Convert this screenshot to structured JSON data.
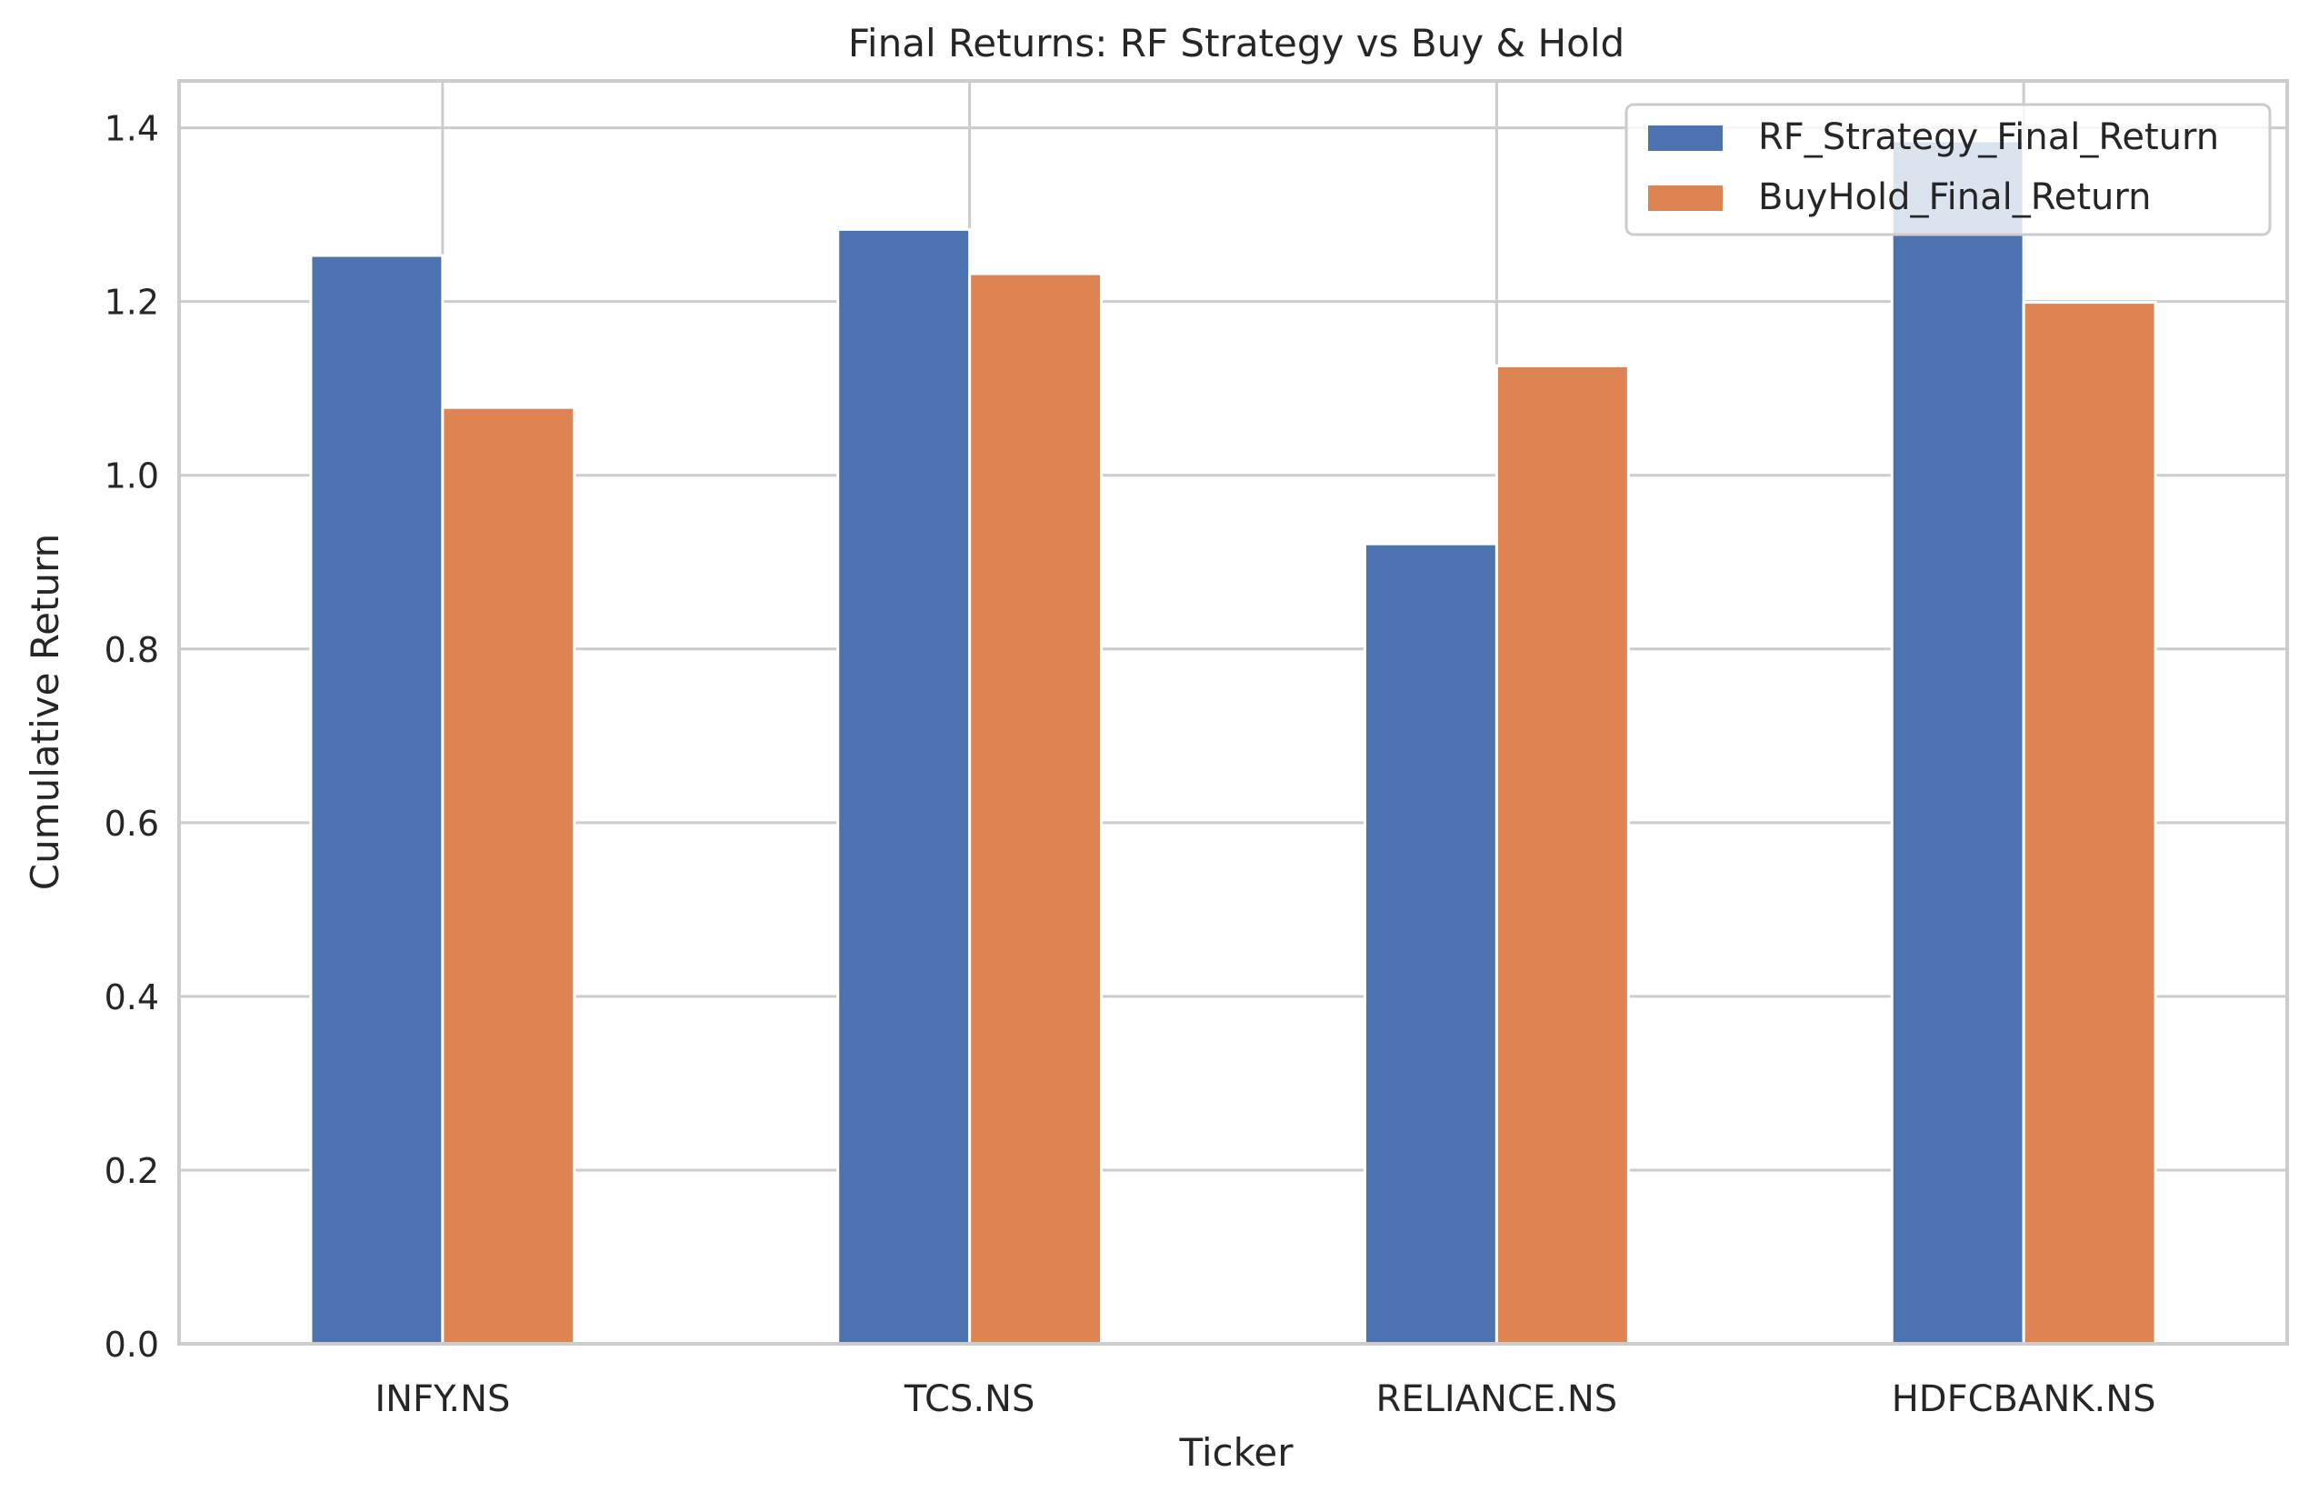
{
  "chart_data": {
    "type": "bar",
    "title": "Final Returns: RF Strategy vs Buy & Hold",
    "xlabel": "Ticker",
    "ylabel": "Cumulative Return",
    "categories": [
      "INFY.NS",
      "TCS.NS",
      "RELIANCE.NS",
      "HDFCBANK.NS"
    ],
    "series": [
      {
        "name": "RF_Strategy_Final_Return",
        "color": "#4c72b0",
        "values": [
          1.253,
          1.283,
          0.921,
          1.385
        ]
      },
      {
        "name": "BuyHold_Final_Return",
        "color": "#dd8452",
        "values": [
          1.078,
          1.232,
          1.126,
          1.199
        ]
      }
    ],
    "ylim": [
      0,
      1.454
    ],
    "yticks": [
      "0.0",
      "0.2",
      "0.4",
      "0.6",
      "0.8",
      "1.0",
      "1.2",
      "1.4"
    ],
    "grid": true,
    "legend_position": "top-right",
    "colors": {
      "grid": "#cccccc",
      "spine": "#cccccc",
      "text": "#262626",
      "background": "#ffffff"
    }
  }
}
